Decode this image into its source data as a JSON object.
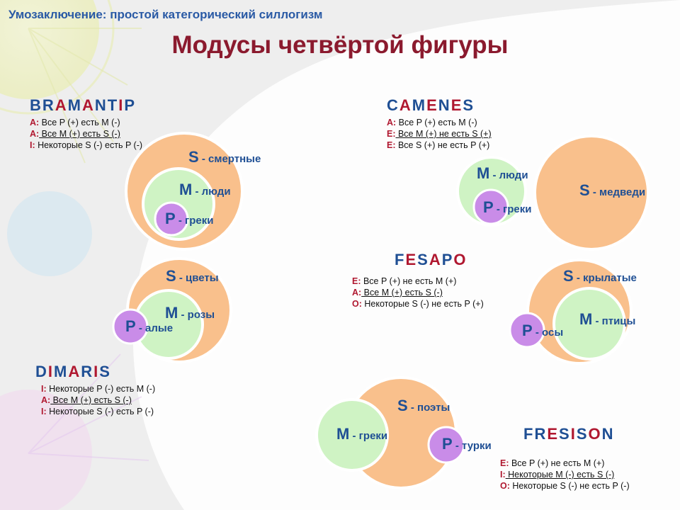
{
  "subtitle": {
    "prefix": "Умозаключение:",
    "rest": " простой категорический силлогизм"
  },
  "title": "Модусы четвёртой фигуры",
  "moods": {
    "bramantip": {
      "parts": [
        {
          "t": "BR",
          "v": false
        },
        {
          "t": "A",
          "v": true
        },
        {
          "t": "M",
          "v": false
        },
        {
          "t": "A",
          "v": true
        },
        {
          "t": "NT",
          "v": false
        },
        {
          "t": "I",
          "v": true
        },
        {
          "t": "P",
          "v": false
        }
      ],
      "premises": [
        {
          "letter": "A:",
          "text": " Все P (+) есть M (-)",
          "underline": false
        },
        {
          "letter": "A:",
          "text": " Все M (+) есть S (-)",
          "underline": true
        },
        {
          "letter": "I:",
          "text": " Некоторые S (-) есть P (-)",
          "underline": false
        }
      ]
    },
    "camenes": {
      "parts": [
        {
          "t": "C",
          "v": false
        },
        {
          "t": "A",
          "v": true
        },
        {
          "t": "M",
          "v": false
        },
        {
          "t": "E",
          "v": true
        },
        {
          "t": "N",
          "v": false
        },
        {
          "t": "E",
          "v": true
        },
        {
          "t": "S",
          "v": false
        }
      ],
      "premises": [
        {
          "letter": "A:",
          "text": " Все P (+) есть M (-)",
          "underline": false
        },
        {
          "letter": "E:",
          "text": " Все M (+) не есть S (+)",
          "underline": true
        },
        {
          "letter": "E:",
          "text": " Все S (+) не есть P (+)",
          "underline": false
        }
      ]
    },
    "fesapo": {
      "parts": [
        {
          "t": "F",
          "v": false
        },
        {
          "t": "E",
          "v": true
        },
        {
          "t": "S",
          "v": false
        },
        {
          "t": "A",
          "v": true
        },
        {
          "t": "P",
          "v": false
        },
        {
          "t": "O",
          "v": true
        }
      ],
      "premises": [
        {
          "letter": "E:",
          "text": " Все P (+) не есть M (+)",
          "underline": false
        },
        {
          "letter": "A:",
          "text": " Все M (+) есть S (-)",
          "underline": true
        },
        {
          "letter": "O:",
          "text": " Некоторые S (-) не есть P (+)",
          "underline": false
        }
      ]
    },
    "dimaris": {
      "parts": [
        {
          "t": "D",
          "v": false
        },
        {
          "t": "I",
          "v": true
        },
        {
          "t": "M",
          "v": false
        },
        {
          "t": "A",
          "v": true
        },
        {
          "t": "R",
          "v": false
        },
        {
          "t": "I",
          "v": true
        },
        {
          "t": "S",
          "v": false
        }
      ],
      "premises": [
        {
          "letter": "I:",
          "text": " Некоторые P (-) есть M (-)",
          "underline": false
        },
        {
          "letter": "A:",
          "text": " Все M (+) есть S (-)",
          "underline": true
        },
        {
          "letter": "I:",
          "text": " Некоторые S (-) есть P (-)",
          "underline": false
        }
      ]
    },
    "fresison": {
      "parts": [
        {
          "t": "FR",
          "v": false
        },
        {
          "t": "E",
          "v": true
        },
        {
          "t": "S",
          "v": false
        },
        {
          "t": "I",
          "v": true
        },
        {
          "t": "S",
          "v": false
        },
        {
          "t": "O",
          "v": true
        },
        {
          "t": "N",
          "v": false
        }
      ],
      "premises": [
        {
          "letter": "E:",
          "text": " Все P (+) не есть M (+)",
          "underline": false
        },
        {
          "letter": "I:",
          "text": " Некоторые M (-) есть S (-)",
          "underline": true
        },
        {
          "letter": "O:",
          "text": " Некоторые S (-) не есть P (-)",
          "underline": false
        }
      ]
    }
  },
  "labels": {
    "bramantip": {
      "S": {
        "letter": "S",
        "desc": " - смертные"
      },
      "M": {
        "letter": "M",
        "desc": " - люди"
      },
      "P": {
        "letter": "P",
        "desc": " - греки"
      }
    },
    "camenes": {
      "S": {
        "letter": "S",
        "desc": " - медведи"
      },
      "M": {
        "letter": "M",
        "desc": " - люди"
      },
      "P": {
        "letter": "P",
        "desc": " - греки"
      }
    },
    "flowers": {
      "S": {
        "letter": "S",
        "desc": " - цветы"
      },
      "M": {
        "letter": "M",
        "desc": " - розы"
      },
      "P": {
        "letter": "P",
        "desc": " - алые"
      }
    },
    "fesapo": {
      "S": {
        "letter": "S",
        "desc": " - крылатые"
      },
      "M": {
        "letter": "M",
        "desc": " - птицы"
      },
      "P": {
        "letter": "P",
        "desc": " - осы"
      }
    },
    "fresison": {
      "S": {
        "letter": "S",
        "desc": " - поэты"
      },
      "M": {
        "letter": "M",
        "desc": " - греки"
      },
      "P": {
        "letter": "P",
        "desc": " - турки"
      }
    }
  },
  "colors": {
    "S_fill": "#f9c08c",
    "M_fill": "#cff3c4",
    "P_fill": "#c98ce8",
    "ring": "#ffffff",
    "mood_consonant": "#1f4f94",
    "mood_vowel": "#b01830",
    "title": "#8b1a2e",
    "subtitle": "#2a5aa5"
  }
}
